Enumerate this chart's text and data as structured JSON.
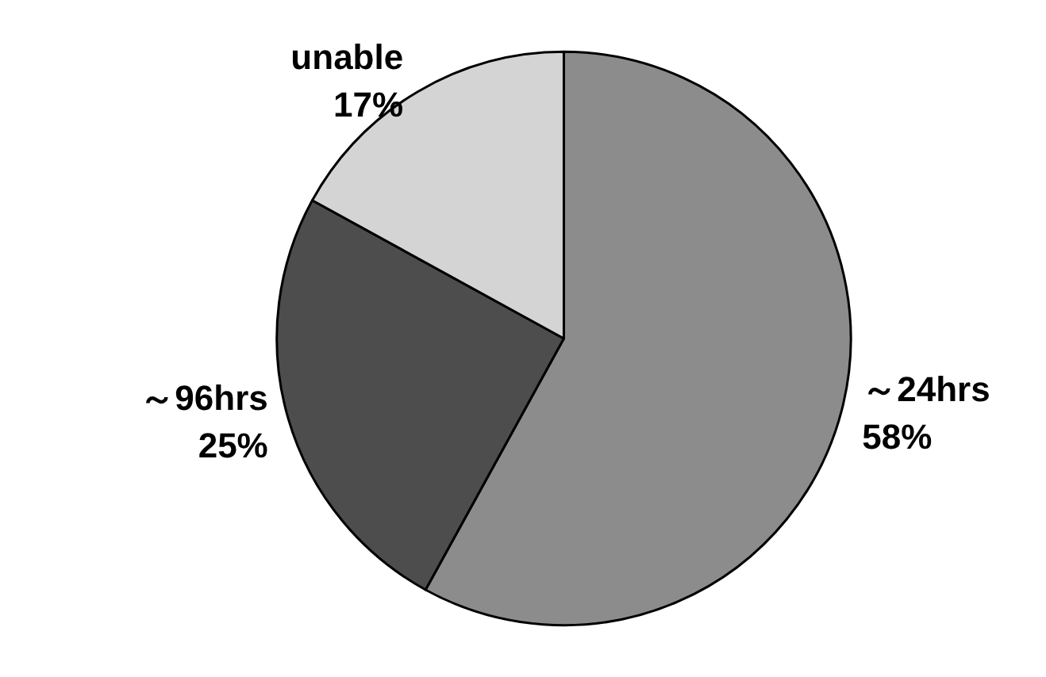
{
  "chart_data": {
    "type": "pie",
    "categories": [
      "～24hrs",
      "～96hrs",
      "unable"
    ],
    "values": [
      58,
      25,
      17
    ],
    "colors": [
      "#8c8c8c",
      "#4d4d4d",
      "#d4d4d4"
    ],
    "value_labels": [
      "58%",
      "25%",
      "17%"
    ],
    "legend": false
  }
}
